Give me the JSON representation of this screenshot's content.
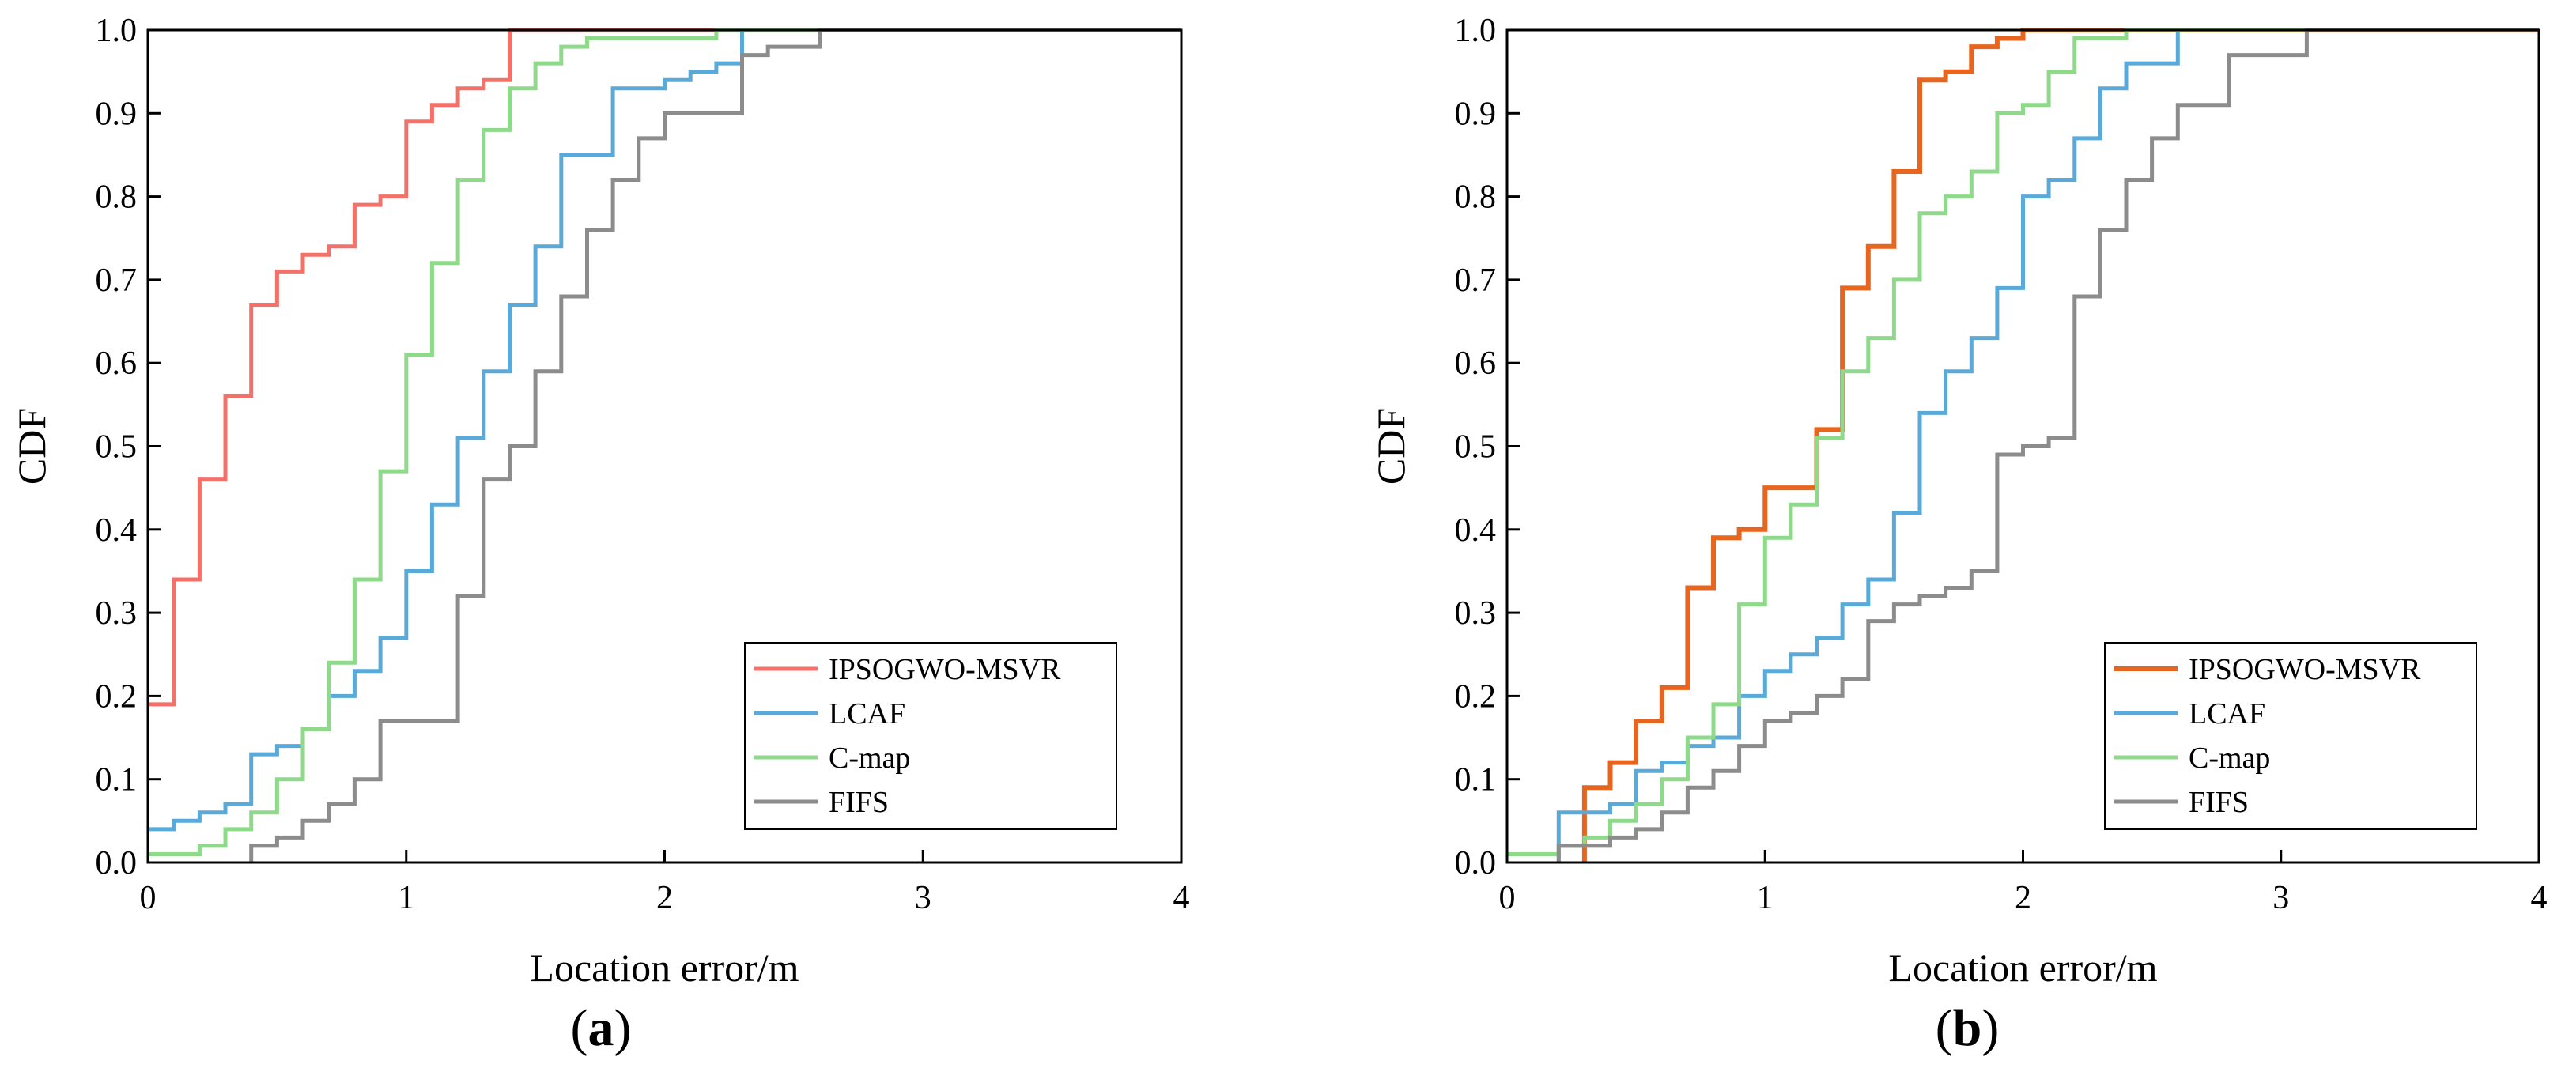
{
  "chart_data": [
    {
      "type": "line",
      "step": true,
      "panel_label": "a",
      "xlabel": "Location error/m",
      "ylabel": "CDF",
      "xlim": [
        0,
        4
      ],
      "ylim": [
        0,
        1
      ],
      "xticks": [
        "0",
        "1",
        "2",
        "3",
        "4"
      ],
      "yticks": [
        "0.0",
        "0.1",
        "0.2",
        "0.3",
        "0.4",
        "0.5",
        "0.6",
        "0.7",
        "0.8",
        "0.9",
        "1.0"
      ],
      "grid": false,
      "legend_position": "bottom-right",
      "series": [
        {
          "name": "IPSOGWO-MSVR",
          "color": "#f4716a",
          "points": [
            [
              0,
              0.19
            ],
            [
              0.1,
              0.34
            ],
            [
              0.2,
              0.46
            ],
            [
              0.3,
              0.56
            ],
            [
              0.4,
              0.67
            ],
            [
              0.5,
              0.71
            ],
            [
              0.6,
              0.73
            ],
            [
              0.7,
              0.74
            ],
            [
              0.8,
              0.79
            ],
            [
              0.9,
              0.8
            ],
            [
              1.0,
              0.89
            ],
            [
              1.1,
              0.91
            ],
            [
              1.2,
              0.93
            ],
            [
              1.3,
              0.94
            ],
            [
              1.4,
              1.0
            ],
            [
              4.0,
              1.0
            ]
          ]
        },
        {
          "name": "LCAF",
          "color": "#5aaad9",
          "points": [
            [
              0,
              0.04
            ],
            [
              0.1,
              0.05
            ],
            [
              0.2,
              0.06
            ],
            [
              0.3,
              0.07
            ],
            [
              0.4,
              0.13
            ],
            [
              0.5,
              0.14
            ],
            [
              0.6,
              0.16
            ],
            [
              0.7,
              0.2
            ],
            [
              0.8,
              0.23
            ],
            [
              0.9,
              0.27
            ],
            [
              1.0,
              0.35
            ],
            [
              1.1,
              0.43
            ],
            [
              1.2,
              0.51
            ],
            [
              1.3,
              0.59
            ],
            [
              1.4,
              0.67
            ],
            [
              1.5,
              0.74
            ],
            [
              1.6,
              0.85
            ],
            [
              1.7,
              0.85
            ],
            [
              1.8,
              0.93
            ],
            [
              1.9,
              0.93
            ],
            [
              2.0,
              0.94
            ],
            [
              2.1,
              0.95
            ],
            [
              2.2,
              0.96
            ],
            [
              2.3,
              1.0
            ],
            [
              4.0,
              1.0
            ]
          ]
        },
        {
          "name": "C-map",
          "color": "#8ed98a",
          "points": [
            [
              0,
              0.01
            ],
            [
              0.1,
              0.01
            ],
            [
              0.2,
              0.02
            ],
            [
              0.3,
              0.04
            ],
            [
              0.4,
              0.06
            ],
            [
              0.5,
              0.1
            ],
            [
              0.6,
              0.16
            ],
            [
              0.7,
              0.24
            ],
            [
              0.8,
              0.34
            ],
            [
              0.9,
              0.47
            ],
            [
              1.0,
              0.61
            ],
            [
              1.1,
              0.72
            ],
            [
              1.2,
              0.82
            ],
            [
              1.3,
              0.88
            ],
            [
              1.4,
              0.93
            ],
            [
              1.5,
              0.96
            ],
            [
              1.6,
              0.98
            ],
            [
              1.7,
              0.99
            ],
            [
              1.8,
              0.99
            ],
            [
              2.2,
              1.0
            ],
            [
              4.0,
              1.0
            ]
          ]
        },
        {
          "name": "FIFS",
          "color": "#8c8c8c",
          "points": [
            [
              0.4,
              0.0
            ],
            [
              0.4,
              0.02
            ],
            [
              0.5,
              0.03
            ],
            [
              0.6,
              0.05
            ],
            [
              0.7,
              0.07
            ],
            [
              0.8,
              0.1
            ],
            [
              0.9,
              0.17
            ],
            [
              1.0,
              0.17
            ],
            [
              1.1,
              0.17
            ],
            [
              1.2,
              0.32
            ],
            [
              1.3,
              0.46
            ],
            [
              1.4,
              0.5
            ],
            [
              1.5,
              0.59
            ],
            [
              1.6,
              0.68
            ],
            [
              1.7,
              0.76
            ],
            [
              1.8,
              0.82
            ],
            [
              1.9,
              0.87
            ],
            [
              2.0,
              0.9
            ],
            [
              2.1,
              0.9
            ],
            [
              2.2,
              0.9
            ],
            [
              2.3,
              0.97
            ],
            [
              2.4,
              0.98
            ],
            [
              2.5,
              0.98
            ],
            [
              2.6,
              1.0
            ],
            [
              4.0,
              1.0
            ]
          ]
        }
      ]
    },
    {
      "type": "line",
      "step": true,
      "panel_label": "b",
      "xlabel": "Location error/m",
      "ylabel": "CDF",
      "xlim": [
        0,
        4
      ],
      "ylim": [
        0,
        1
      ],
      "xticks": [
        "0",
        "1",
        "2",
        "3",
        "4"
      ],
      "yticks": [
        "0.0",
        "0.1",
        "0.2",
        "0.3",
        "0.4",
        "0.5",
        "0.6",
        "0.7",
        "0.8",
        "0.9",
        "1.0"
      ],
      "grid": false,
      "legend_position": "bottom-right",
      "series": [
        {
          "name": "IPSOGWO-MSVR",
          "color": "#e8651f",
          "points": [
            [
              0.3,
              0.0
            ],
            [
              0.3,
              0.09
            ],
            [
              0.4,
              0.12
            ],
            [
              0.5,
              0.17
            ],
            [
              0.6,
              0.21
            ],
            [
              0.7,
              0.33
            ],
            [
              0.8,
              0.39
            ],
            [
              0.9,
              0.4
            ],
            [
              1.0,
              0.45
            ],
            [
              1.1,
              0.45
            ],
            [
              1.2,
              0.52
            ],
            [
              1.3,
              0.69
            ],
            [
              1.4,
              0.74
            ],
            [
              1.5,
              0.83
            ],
            [
              1.6,
              0.94
            ],
            [
              1.7,
              0.95
            ],
            [
              1.8,
              0.98
            ],
            [
              1.9,
              0.99
            ],
            [
              2.0,
              1.0
            ],
            [
              4.0,
              1.0
            ]
          ]
        },
        {
          "name": "LCAF",
          "color": "#5aaad9",
          "points": [
            [
              0.2,
              0.0
            ],
            [
              0.2,
              0.06
            ],
            [
              0.3,
              0.06
            ],
            [
              0.4,
              0.07
            ],
            [
              0.5,
              0.11
            ],
            [
              0.6,
              0.12
            ],
            [
              0.7,
              0.14
            ],
            [
              0.8,
              0.15
            ],
            [
              0.9,
              0.2
            ],
            [
              1.0,
              0.23
            ],
            [
              1.1,
              0.25
            ],
            [
              1.2,
              0.27
            ],
            [
              1.3,
              0.31
            ],
            [
              1.4,
              0.34
            ],
            [
              1.5,
              0.42
            ],
            [
              1.6,
              0.54
            ],
            [
              1.7,
              0.59
            ],
            [
              1.8,
              0.63
            ],
            [
              1.9,
              0.69
            ],
            [
              2.0,
              0.8
            ],
            [
              2.1,
              0.82
            ],
            [
              2.2,
              0.87
            ],
            [
              2.3,
              0.93
            ],
            [
              2.4,
              0.96
            ],
            [
              2.5,
              0.96
            ],
            [
              2.6,
              1.0
            ],
            [
              4.0,
              1.0
            ]
          ]
        },
        {
          "name": "C-map",
          "color": "#8ed98a",
          "points": [
            [
              0,
              0.01
            ],
            [
              0.1,
              0.01
            ],
            [
              0.2,
              0.02
            ],
            [
              0.3,
              0.03
            ],
            [
              0.4,
              0.05
            ],
            [
              0.5,
              0.07
            ],
            [
              0.6,
              0.1
            ],
            [
              0.7,
              0.15
            ],
            [
              0.8,
              0.19
            ],
            [
              0.9,
              0.31
            ],
            [
              1.0,
              0.39
            ],
            [
              1.1,
              0.43
            ],
            [
              1.2,
              0.51
            ],
            [
              1.3,
              0.59
            ],
            [
              1.4,
              0.63
            ],
            [
              1.5,
              0.7
            ],
            [
              1.6,
              0.78
            ],
            [
              1.7,
              0.8
            ],
            [
              1.8,
              0.83
            ],
            [
              1.9,
              0.9
            ],
            [
              2.0,
              0.91
            ],
            [
              2.1,
              0.95
            ],
            [
              2.2,
              0.99
            ],
            [
              2.3,
              0.99
            ],
            [
              2.4,
              1.0
            ],
            [
              4.0,
              1.0
            ]
          ]
        },
        {
          "name": "FIFS",
          "color": "#8c8c8c",
          "points": [
            [
              0.2,
              0.0
            ],
            [
              0.2,
              0.02
            ],
            [
              0.3,
              0.02
            ],
            [
              0.4,
              0.03
            ],
            [
              0.5,
              0.04
            ],
            [
              0.6,
              0.06
            ],
            [
              0.7,
              0.09
            ],
            [
              0.8,
              0.11
            ],
            [
              0.9,
              0.14
            ],
            [
              1.0,
              0.17
            ],
            [
              1.1,
              0.18
            ],
            [
              1.2,
              0.2
            ],
            [
              1.3,
              0.22
            ],
            [
              1.4,
              0.29
            ],
            [
              1.5,
              0.31
            ],
            [
              1.6,
              0.32
            ],
            [
              1.7,
              0.33
            ],
            [
              1.8,
              0.35
            ],
            [
              1.9,
              0.49
            ],
            [
              2.0,
              0.5
            ],
            [
              2.1,
              0.51
            ],
            [
              2.2,
              0.68
            ],
            [
              2.3,
              0.76
            ],
            [
              2.4,
              0.82
            ],
            [
              2.5,
              0.87
            ],
            [
              2.6,
              0.91
            ],
            [
              2.7,
              0.91
            ],
            [
              2.8,
              0.97
            ],
            [
              3.0,
              0.97
            ],
            [
              3.1,
              1.0
            ],
            [
              4.0,
              1.0
            ]
          ]
        }
      ]
    }
  ]
}
